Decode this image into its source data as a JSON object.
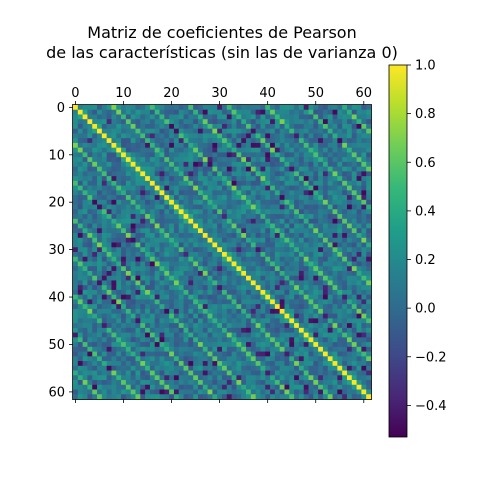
{
  "chart_data": {
    "type": "heatmap",
    "title_lines": [
      "Matriz de coeficientes de Pearson",
      "de las características (sin las de varianza 0)"
    ],
    "n": 62,
    "x_ticks": [
      0,
      10,
      20,
      30,
      40,
      50,
      60
    ],
    "y_ticks": [
      0,
      10,
      20,
      30,
      40,
      50,
      60
    ],
    "x_ticks_position": "top",
    "colormap": "viridis",
    "vmin": -0.53,
    "vmax": 1.0,
    "colorbar_ticks": [
      {
        "value": 1.0,
        "label": "1.0"
      },
      {
        "value": 0.8,
        "label": "0.8"
      },
      {
        "value": 0.6,
        "label": "0.6"
      },
      {
        "value": 0.4,
        "label": "0.4"
      },
      {
        "value": 0.2,
        "label": "0.2"
      },
      {
        "value": 0.0,
        "label": "0.0"
      },
      {
        "value": -0.2,
        "label": "−0.2"
      },
      {
        "value": -0.4,
        "label": "−0.4"
      }
    ],
    "diagonal_value": 1.0,
    "offdiagonal_band_offsets": [
      8,
      16,
      24,
      32,
      40,
      48,
      56
    ],
    "offdiagonal_band_value": 0.55,
    "background_value_mean": 0.05,
    "background_value_spread": 0.2,
    "grid": false
  }
}
